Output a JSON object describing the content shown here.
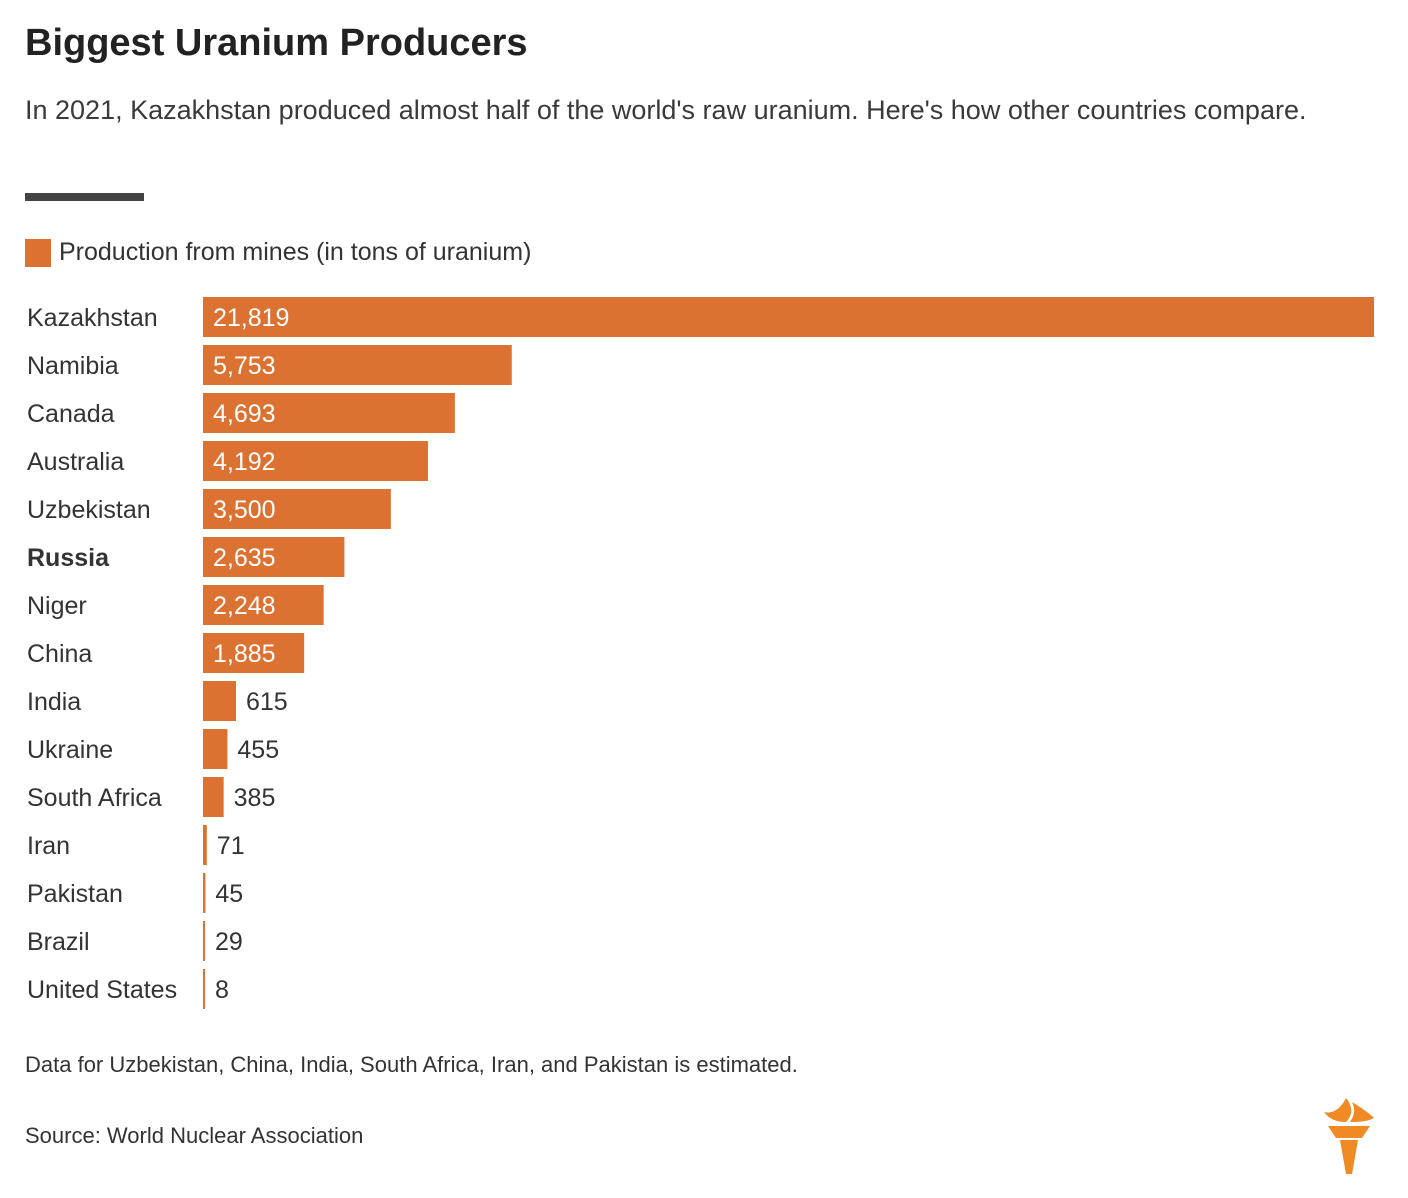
{
  "title": "Biggest Uranium Producers",
  "subtitle": "In 2021, Kazakhstan produced almost half of the world's raw uranium. Here's how other countries compare.",
  "note": "Data for Uzbekistan, China, India, South Africa, Iran, and Pakistan is estimated.",
  "source": "Source: World Nuclear Association",
  "colors": {
    "bar": "#dc7231",
    "text": "#333333",
    "rule": "#444444",
    "logo": "#f08a24"
  },
  "chart_data": {
    "type": "bar",
    "orientation": "horizontal",
    "title": "",
    "xlabel": "",
    "ylabel": "",
    "legend": {
      "position": "top-left",
      "entries": [
        "Production from mines (in tons of uranium)"
      ]
    },
    "grid": false,
    "xlim": [
      0,
      21819
    ],
    "categories": [
      "Kazakhstan",
      "Namibia",
      "Canada",
      "Australia",
      "Uzbekistan",
      "Russia",
      "Niger",
      "China",
      "India",
      "Ukraine",
      "South Africa",
      "Iran",
      "Pakistan",
      "Brazil",
      "United States"
    ],
    "highlighted": [
      "Russia"
    ],
    "series": [
      {
        "name": "Production from mines (in tons of uranium)",
        "values": [
          21819,
          5753,
          4693,
          4192,
          3500,
          2635,
          2248,
          1885,
          615,
          455,
          385,
          71,
          45,
          29,
          8
        ],
        "labels": [
          "21,819",
          "5,753",
          "4,693",
          "4,192",
          "3,500",
          "2,635",
          "2,248",
          "1,885",
          "615",
          "455",
          "385",
          "71",
          "45",
          "29",
          "8"
        ]
      }
    ]
  }
}
